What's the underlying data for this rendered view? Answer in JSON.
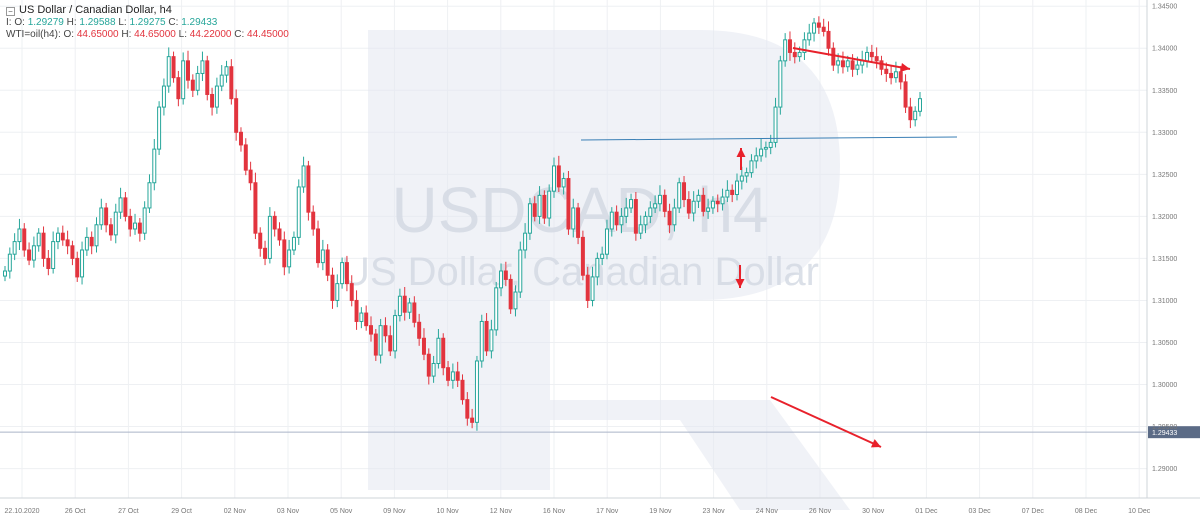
{
  "header": {
    "title": "US Dollar / Canadian Dollar, h4",
    "main_ohlc": {
      "o_label": "I: O:",
      "o": "1.29279",
      "h_label": "H:",
      "h": "1.29588",
      "l_label": "L:",
      "l": "1.29275",
      "c_label": "C:",
      "c": "1.29433"
    },
    "overlay_ohlc": {
      "prefix": "WTI=oil(h4): O:",
      "o": "44.65000",
      "h_label": "H:",
      "h": "44.65000",
      "l_label": "L:",
      "l": "44.22000",
      "c_label": "C:",
      "c": "44.45000"
    }
  },
  "watermark": {
    "line1": "USDCAD, h4",
    "line2": "US Dollar, Canadian Dollar"
  },
  "price_tag": "1.29433",
  "colors": {
    "up": "#26a69a",
    "down": "#e2343e",
    "arrow": "#e8212b",
    "support_line": "#3a7fb5",
    "grid": "#eef0f3",
    "cursor_line": "#aab4c8"
  },
  "chart_data": {
    "type": "candlestick",
    "y_axis": {
      "ylim": [
        1.2865,
        1.3455
      ],
      "ticks": [
        "1.34500",
        "1.34000",
        "1.33500",
        "1.33000",
        "1.32500",
        "1.32000",
        "1.31500",
        "1.31000",
        "1.30500",
        "1.30000",
        "1.29500",
        "1.29000"
      ],
      "tick_values": [
        1.345,
        1.34,
        1.335,
        1.33,
        1.325,
        1.32,
        1.315,
        1.31,
        1.305,
        1.3,
        1.295,
        1.29
      ]
    },
    "x_axis": {
      "labels": [
        "22.10.2020",
        "26 Oct",
        "27 Oct",
        "29 Oct",
        "02 Nov",
        "03 Nov",
        "05 Nov",
        "09 Nov",
        "10 Nov",
        "12 Nov",
        "16 Nov",
        "17 Nov",
        "19 Nov",
        "23 Nov",
        "24 Nov",
        "26 Nov",
        "30 Nov",
        "01 Dec",
        "03 Dec",
        "07 Dec",
        "08 Dec",
        "10 Dec"
      ]
    },
    "current_price": 1.29433,
    "series": [
      {
        "name": "USDCAD",
        "closes": [
          1.3135,
          1.3155,
          1.317,
          1.3185,
          1.316,
          1.3148,
          1.3165,
          1.318,
          1.315,
          1.3138,
          1.317,
          1.318,
          1.3172,
          1.3165,
          1.315,
          1.3128,
          1.316,
          1.3175,
          1.3165,
          1.319,
          1.321,
          1.319,
          1.3178,
          1.3205,
          1.3222,
          1.32,
          1.3185,
          1.3192,
          1.318,
          1.321,
          1.324,
          1.328,
          1.333,
          1.3355,
          1.339,
          1.3365,
          1.334,
          1.3385,
          1.3362,
          1.335,
          1.337,
          1.3385,
          1.3345,
          1.333,
          1.3355,
          1.3368,
          1.3378,
          1.334,
          1.33,
          1.3285,
          1.3255,
          1.324,
          1.318,
          1.3162,
          1.315,
          1.32,
          1.3185,
          1.3172,
          1.314,
          1.316,
          1.3175,
          1.3235,
          1.326,
          1.3205,
          1.3185,
          1.3145,
          1.316,
          1.313,
          1.31,
          1.312,
          1.3145,
          1.312,
          1.31,
          1.3075,
          1.3085,
          1.307,
          1.306,
          1.3035,
          1.307,
          1.3058,
          1.304,
          1.3082,
          1.3105,
          1.3086,
          1.3097,
          1.3074,
          1.3055,
          1.3036,
          1.301,
          1.3025,
          1.3055,
          1.302,
          1.3005,
          1.3015,
          1.3005,
          1.2982,
          1.296,
          1.2955,
          1.3028,
          1.3075,
          1.304,
          1.3065,
          1.3115,
          1.3135,
          1.3125,
          1.309,
          1.311,
          1.316,
          1.318,
          1.3215,
          1.32,
          1.3225,
          1.3198,
          1.323,
          1.326,
          1.3235,
          1.3245,
          1.3185,
          1.321,
          1.3175,
          1.313,
          1.31,
          1.3128,
          1.315,
          1.3155,
          1.3185,
          1.3205,
          1.319,
          1.32,
          1.321,
          1.322,
          1.318,
          1.319,
          1.32,
          1.321,
          1.3215,
          1.3225,
          1.3206,
          1.319,
          1.321,
          1.324,
          1.322,
          1.3204,
          1.3218,
          1.3225,
          1.3206,
          1.321,
          1.3218,
          1.3215,
          1.3223,
          1.3231,
          1.3226,
          1.3242,
          1.3248,
          1.3252,
          1.3266,
          1.3272,
          1.328,
          1.3282,
          1.3288,
          1.333,
          1.3385,
          1.341,
          1.3395,
          1.339,
          1.3395,
          1.341,
          1.3418,
          1.343,
          1.3425,
          1.342,
          1.34,
          1.338,
          1.3385,
          1.3378,
          1.3385,
          1.3375,
          1.338,
          1.3385,
          1.3395,
          1.339,
          1.3385,
          1.3375,
          1.337,
          1.3365,
          1.3372,
          1.336,
          1.333,
          1.3315,
          1.3325,
          1.334
        ],
        "highs": null
      }
    ]
  }
}
